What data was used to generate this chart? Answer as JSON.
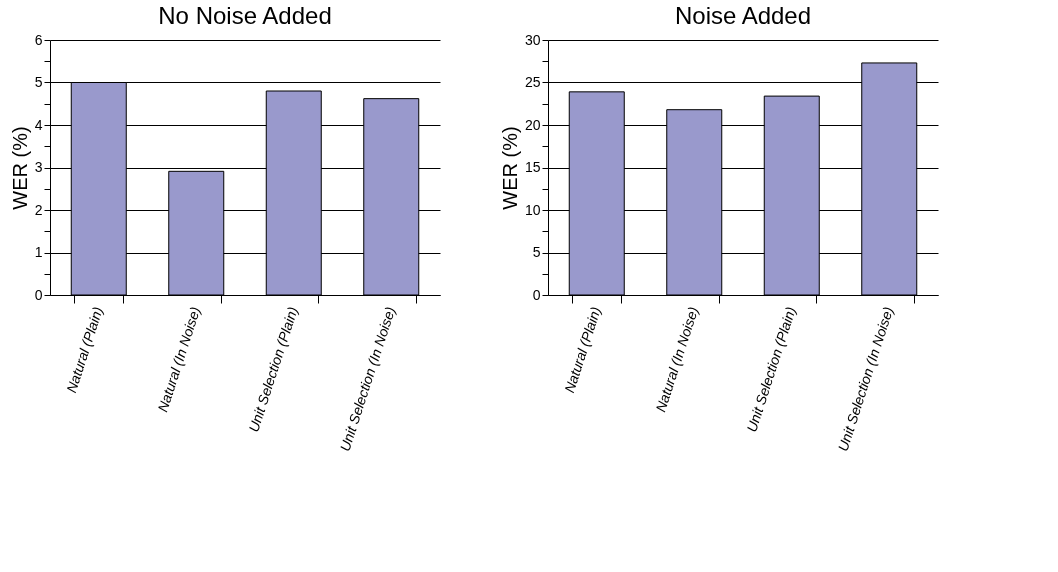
{
  "chart_data": [
    {
      "type": "bar",
      "title": "No Noise Added",
      "ylabel": "WER (%)",
      "categories": [
        "Natural (Plain)",
        "Natural (In Noise)",
        "Unit Selection (Plain)",
        "Unit Selection (In Noise)"
      ],
      "values": [
        5.0,
        2.91,
        4.8,
        4.62
      ],
      "color": "#9999cc",
      "ylim": [
        0,
        6
      ],
      "yticks": [
        0,
        {
          "value": 0.5,
          "label": null
        },
        1,
        {
          "value": 1.5,
          "label": null
        },
        2,
        {
          "value": 2.5,
          "label": null
        },
        3,
        {
          "value": 3.5,
          "label": null
        },
        4,
        {
          "value": 4.5,
          "label": null
        },
        5,
        {
          "value": 5.5,
          "label": null
        },
        6
      ],
      "grid": "y"
    },
    {
      "type": "bar",
      "title": "Noise Added",
      "ylabel": "WER (%)",
      "categories": [
        "Natural (Plain)",
        "Natural (In Noise)",
        "Unit Selection (Plain)",
        "Unit Selection (In Noise)"
      ],
      "values": [
        23.9,
        21.8,
        23.4,
        27.3
      ],
      "color": "#9999cc",
      "ylim": [
        0,
        30
      ],
      "yticks": [
        0,
        {
          "value": 2.5,
          "label": null
        },
        5,
        {
          "value": 7.5,
          "label": null
        },
        10,
        {
          "value": 12.5,
          "label": null
        },
        15,
        {
          "value": 17.5,
          "label": null
        },
        20,
        {
          "value": 22.5,
          "label": null
        },
        25,
        {
          "value": 27.5,
          "label": null
        },
        30
      ],
      "grid": "y"
    }
  ]
}
